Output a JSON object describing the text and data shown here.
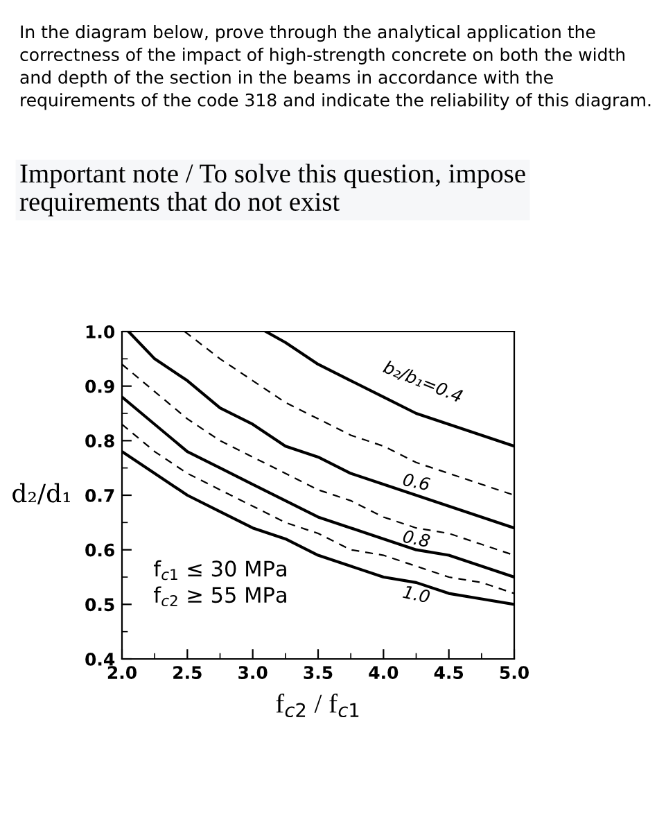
{
  "chart_data": {
    "type": "line",
    "title": "In the diagram below, prove through the analytical application the correctness of the impact of high-strength concrete on both the width and depth of the section in the beams in accordance with the requirements of the code 318 and indicate the reliability of this diagram.",
    "subtitle": "Important note / To solve this question, impose requirements that do not exist",
    "xlabel": "f$_{c2}$ / f$_{c1}$",
    "ylabel": "d₂/d₁",
    "xlim": [
      2.0,
      5.0
    ],
    "ylim": [
      0.4,
      1.0
    ],
    "xticks": [
      {
        "value": 2.0,
        "label": "2.0"
      },
      {
        "value": 2.5,
        "label": "2.5"
      },
      {
        "value": 3.0,
        "label": "3.0"
      },
      {
        "value": 3.5,
        "label": "3.5"
      },
      {
        "value": 4.0,
        "label": "4.0"
      },
      {
        "value": 4.5,
        "label": "4.5"
      },
      {
        "value": 5.0,
        "label": "5.0"
      }
    ],
    "yticks": [
      {
        "value": 0.4,
        "label": "0.4"
      },
      {
        "value": 0.5,
        "label": "0.5"
      },
      {
        "value": 0.6,
        "label": "0.6"
      },
      {
        "value": 0.7,
        "label": "0.7"
      },
      {
        "value": 0.8,
        "label": "0.8"
      },
      {
        "value": 0.9,
        "label": "0.9"
      },
      {
        "value": 1.0,
        "label": "1.0"
      }
    ],
    "grid": false,
    "legend": false,
    "marker": "none",
    "series": [
      {
        "name": "b₂/b₁=0.4",
        "color": "#000000",
        "line_style": "solid",
        "x": [
          3.1,
          3.25,
          3.5,
          3.75,
          4.0,
          4.25,
          4.5,
          4.75,
          5.0
        ],
        "values": [
          1.0,
          0.98,
          0.94,
          0.91,
          0.88,
          0.85,
          0.83,
          0.81,
          0.79
        ]
      },
      {
        "color": "#000000",
        "line_style": "dashed",
        "x": [
          2.48,
          2.75,
          3.0,
          3.25,
          3.5,
          3.75,
          4.0,
          4.25,
          4.5,
          4.75,
          5.0
        ],
        "values": [
          1.0,
          0.95,
          0.91,
          0.87,
          0.84,
          0.81,
          0.79,
          0.76,
          0.74,
          0.72,
          0.7
        ]
      },
      {
        "name": "0.6",
        "color": "#000000",
        "line_style": "solid",
        "x": [
          2.05,
          2.25,
          2.5,
          2.75,
          3.0,
          3.25,
          3.5,
          3.75,
          4.0,
          4.25,
          4.5,
          4.75,
          5.0
        ],
        "values": [
          1.0,
          0.95,
          0.91,
          0.86,
          0.83,
          0.79,
          0.77,
          0.74,
          0.72,
          0.7,
          0.68,
          0.66,
          0.64
        ]
      },
      {
        "color": "#000000",
        "line_style": "dashed",
        "x": [
          2.0,
          2.25,
          2.5,
          2.75,
          3.0,
          3.25,
          3.5,
          3.75,
          4.0,
          4.25,
          4.5,
          4.75,
          5.0
        ],
        "values": [
          0.94,
          0.89,
          0.84,
          0.8,
          0.77,
          0.74,
          0.71,
          0.69,
          0.66,
          0.64,
          0.63,
          0.61,
          0.59
        ]
      },
      {
        "name": "0.8",
        "color": "#000000",
        "line_style": "solid",
        "x": [
          2.0,
          2.25,
          2.5,
          2.75,
          3.0,
          3.25,
          3.5,
          3.75,
          4.0,
          4.25,
          4.5,
          4.75,
          5.0
        ],
        "values": [
          0.88,
          0.83,
          0.78,
          0.75,
          0.72,
          0.69,
          0.66,
          0.64,
          0.62,
          0.6,
          0.59,
          0.57,
          0.55
        ]
      },
      {
        "color": "#000000",
        "line_style": "dashed",
        "x": [
          2.0,
          2.25,
          2.5,
          2.75,
          3.0,
          3.25,
          3.5,
          3.75,
          4.0,
          4.25,
          4.5,
          4.75,
          5.0
        ],
        "values": [
          0.83,
          0.78,
          0.74,
          0.71,
          0.68,
          0.65,
          0.63,
          0.6,
          0.59,
          0.57,
          0.55,
          0.54,
          0.52
        ]
      },
      {
        "name": "1.0",
        "color": "#000000",
        "line_style": "solid",
        "x": [
          2.0,
          2.25,
          2.5,
          2.75,
          3.0,
          3.25,
          3.5,
          3.75,
          4.0,
          4.25,
          4.5,
          4.75,
          5.0
        ],
        "values": [
          0.78,
          0.74,
          0.7,
          0.67,
          0.64,
          0.62,
          0.59,
          0.57,
          0.55,
          0.54,
          0.52,
          0.51,
          0.5
        ]
      }
    ],
    "annotations": [
      "f$_{c1}$ ≤ 30 MPa",
      "f$_{c2}$ ≥ 55 MPa"
    ]
  }
}
